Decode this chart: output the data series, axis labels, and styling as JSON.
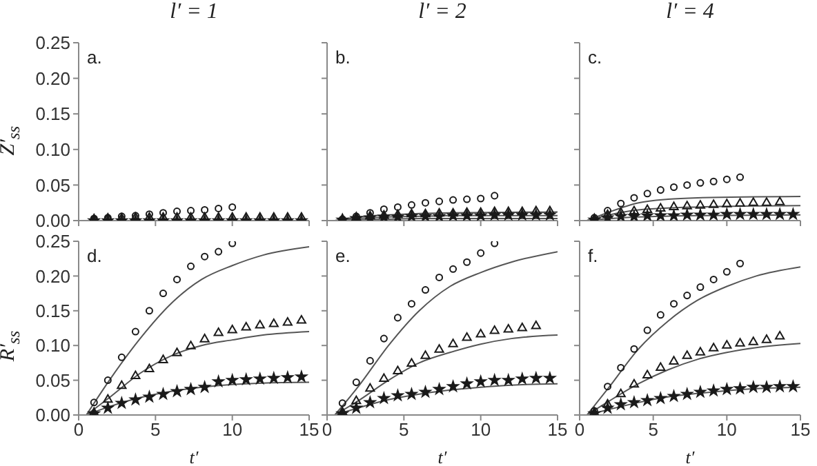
{
  "chart_data": [
    {
      "type": "scatter",
      "title": "l′ = 1",
      "ylabel": "Z′$_{ss}$",
      "annotations": [
        "a."
      ],
      "tick_labels": "y",
      "xlim": [
        0,
        15
      ],
      "xticks": [
        0,
        5,
        10,
        15
      ],
      "ylim": [
        0,
        0.25
      ],
      "yticks": [
        {
          "value": 0,
          "label": "0.00"
        },
        0.05,
        {
          "value": 0.1,
          "label": "0.10"
        },
        0.15,
        {
          "value": 0.2,
          "label": "0.20"
        },
        0.25
      ],
      "x": [
        1,
        1.9,
        2.8,
        3.7,
        4.6,
        5.5,
        6.4,
        7.3,
        8.2,
        9.1,
        10,
        10.9,
        11.8,
        12.7,
        13.6,
        14.5
      ],
      "series": [
        {
          "type": "scatter",
          "marker": "circle",
          "color": "#1a1a1a",
          "values": [
            0.003,
            0.004,
            0.006,
            0.007,
            0.009,
            0.011,
            0.013,
            0.014,
            0.015,
            0.017,
            0.019,
            null,
            null,
            null,
            null,
            null
          ]
        },
        {
          "type": "scatter",
          "marker": "triangle",
          "color": "#1a1a1a",
          "values": [
            0.002,
            0.003,
            0.003,
            0.004,
            0.004,
            0.004,
            0.004,
            0.004,
            0.004,
            0.004,
            0.004,
            0.004,
            0.004,
            0.004,
            0.004,
            0.004
          ]
        },
        {
          "type": "scatter",
          "marker": "star",
          "color": "#1a1a1a",
          "values": [
            0,
            0,
            0,
            0,
            0,
            0,
            0,
            0,
            0,
            0,
            0,
            0,
            0,
            0,
            0,
            0
          ]
        }
      ]
    },
    {
      "type": "scatter",
      "title": "l′ = 2",
      "annotations": [
        "b."
      ],
      "tick_labels": false,
      "xlim": [
        0,
        15
      ],
      "xticks": [
        0,
        5,
        10,
        15
      ],
      "ylim": [
        0,
        0.25
      ],
      "yticks": [
        0,
        0.05,
        0.1,
        0.15,
        0.2,
        0.25
      ],
      "x": [
        1,
        1.9,
        2.8,
        3.7,
        4.6,
        5.5,
        6.4,
        7.3,
        8.2,
        9.1,
        10,
        10.9,
        11.8,
        12.7,
        13.6,
        14.5
      ],
      "series": [
        {
          "type": "scatter",
          "marker": "circle",
          "color": "#1a1a1a",
          "values": [
            0.002,
            0.006,
            0.011,
            0.016,
            0.019,
            0.022,
            0.025,
            0.027,
            0.029,
            0.03,
            0.031,
            0.035,
            null,
            null,
            null,
            null
          ]
        },
        {
          "type": "scatter",
          "marker": "triangle",
          "color": "#1a1a1a",
          "values": [
            0.002,
            0.004,
            0.006,
            0.007,
            0.008,
            0.009,
            0.009,
            0.01,
            0.01,
            0.011,
            0.011,
            0.012,
            0.012,
            0.012,
            0.013,
            0.013
          ]
        },
        {
          "type": "scatter",
          "marker": "star",
          "color": "#1a1a1a",
          "values": [
            0.001,
            0.003,
            0.004,
            0.005,
            0.005,
            0.006,
            0.006,
            0.006,
            0.007,
            0.007,
            0.007,
            0.008,
            0.008,
            0.008,
            0.008,
            0.008
          ]
        },
        {
          "type": "line",
          "marker": "none",
          "color": "#555555",
          "x": [
            0.5,
            2,
            4,
            6,
            8,
            15
          ],
          "values": [
            0,
            0.005,
            0.008,
            0.01,
            0.011,
            0.012
          ]
        },
        {
          "type": "line",
          "marker": "none",
          "color": "#555555",
          "x": [
            0.5,
            2,
            4,
            6,
            8,
            15
          ],
          "values": [
            0,
            0.003,
            0.005,
            0.006,
            0.007,
            0.007
          ]
        },
        {
          "type": "line",
          "marker": "none",
          "color": "#555555",
          "x": [
            0.5,
            2,
            4,
            6,
            8,
            15
          ],
          "values": [
            0,
            0.001,
            0.002,
            0.003,
            0.003,
            0.003
          ]
        }
      ]
    },
    {
      "type": "scatter",
      "title": "l′ = 4",
      "annotations": [
        "c."
      ],
      "tick_labels": false,
      "xlim": [
        0,
        15
      ],
      "xticks": [
        0,
        5,
        10,
        15
      ],
      "ylim": [
        0,
        0.25
      ],
      "yticks": [
        0,
        0.05,
        0.1,
        0.15,
        0.2,
        0.25
      ],
      "x": [
        1,
        1.9,
        2.8,
        3.7,
        4.6,
        5.5,
        6.4,
        7.3,
        8.2,
        9.1,
        10,
        10.9,
        11.8,
        12.7,
        13.6,
        14.5
      ],
      "series": [
        {
          "type": "scatter",
          "marker": "circle",
          "color": "#1a1a1a",
          "values": [
            0.004,
            0.014,
            0.024,
            0.032,
            0.038,
            0.043,
            0.047,
            0.05,
            0.053,
            0.055,
            0.058,
            0.061,
            null,
            null,
            null,
            null
          ]
        },
        {
          "type": "scatter",
          "marker": "triangle",
          "color": "#1a1a1a",
          "values": [
            0.002,
            0.008,
            0.011,
            0.013,
            0.015,
            0.017,
            0.019,
            0.02,
            0.021,
            0.022,
            0.023,
            0.024,
            0.025,
            0.025,
            0.026,
            null
          ]
        },
        {
          "type": "scatter",
          "marker": "star",
          "color": "#1a1a1a",
          "values": [
            0.001,
            0.004,
            0.006,
            0.006,
            0.007,
            0.007,
            0.007,
            0.008,
            0.008,
            0.008,
            0.009,
            0.009,
            0.009,
            0.009,
            0.009,
            0.009
          ]
        },
        {
          "type": "line",
          "marker": "none",
          "color": "#555555",
          "x": [
            0.5,
            2,
            4,
            6,
            8,
            15
          ],
          "values": [
            0,
            0.012,
            0.025,
            0.03,
            0.032,
            0.034
          ]
        },
        {
          "type": "line",
          "marker": "none",
          "color": "#555555",
          "x": [
            0.5,
            2,
            4,
            8,
            15
          ],
          "values": [
            0,
            0.008,
            0.015,
            0.019,
            0.021
          ]
        },
        {
          "type": "line",
          "marker": "none",
          "color": "#555555",
          "x": [
            0.5,
            3,
            8,
            15
          ],
          "values": [
            0,
            0.004,
            0.007,
            0.008
          ]
        }
      ]
    },
    {
      "type": "scatter",
      "xlabel": "t′",
      "ylabel": "R′$_{ss}$",
      "annotations": [
        "d."
      ],
      "xlim": [
        0,
        15
      ],
      "xticks": [
        0,
        5,
        10,
        15
      ],
      "ylim": [
        0,
        0.25
      ],
      "yticks": [
        {
          "value": 0,
          "label": "0.00"
        },
        0.05,
        {
          "value": 0.1,
          "label": "0.10"
        },
        0.15,
        {
          "value": 0.2,
          "label": "0.20"
        },
        0.25
      ],
      "x": [
        1,
        1.9,
        2.8,
        3.7,
        4.6,
        5.5,
        6.4,
        7.3,
        8.2,
        9.1,
        10,
        10.9,
        11.8,
        12.7,
        13.6,
        14.5
      ],
      "series": [
        {
          "type": "scatter",
          "marker": "circle",
          "color": "#1a1a1a",
          "values": [
            0.018,
            0.05,
            0.083,
            0.12,
            0.15,
            0.175,
            0.195,
            0.214,
            0.228,
            0.235,
            0.247,
            null,
            null,
            null,
            null,
            null
          ]
        },
        {
          "type": "scatter",
          "marker": "triangle",
          "color": "#1a1a1a",
          "values": [
            0.003,
            0.022,
            0.042,
            0.056,
            0.066,
            0.079,
            0.089,
            0.099,
            0.109,
            0.118,
            0.122,
            0.126,
            0.129,
            0.131,
            0.133,
            0.136
          ]
        },
        {
          "type": "scatter",
          "marker": "star",
          "color": "#1a1a1a",
          "values": [
            0.002,
            0.01,
            0.017,
            0.022,
            0.026,
            0.03,
            0.034,
            0.037,
            0.04,
            0.048,
            0.05,
            0.051,
            0.052,
            0.053,
            0.054,
            0.055
          ]
        },
        {
          "type": "line",
          "marker": "none",
          "color": "#555555",
          "x": [
            0.5,
            2,
            4,
            6,
            8,
            10,
            12,
            15
          ],
          "values": [
            0,
            0.05,
            0.11,
            0.16,
            0.195,
            0.215,
            0.23,
            0.242
          ]
        },
        {
          "type": "line",
          "marker": "none",
          "color": "#555555",
          "x": [
            0.5,
            2,
            4,
            6,
            8,
            10,
            12,
            15
          ],
          "values": [
            0,
            0.025,
            0.06,
            0.085,
            0.1,
            0.108,
            0.115,
            0.12
          ]
        },
        {
          "type": "line",
          "marker": "none",
          "color": "#555555",
          "x": [
            0.5,
            2,
            4,
            6,
            8,
            10,
            12,
            15
          ],
          "values": [
            0,
            0.012,
            0.025,
            0.034,
            0.04,
            0.044,
            0.046,
            0.047
          ]
        }
      ]
    },
    {
      "type": "scatter",
      "xlabel": "t′",
      "annotations": [
        "e."
      ],
      "tick_labels": "x",
      "xlim": [
        0,
        15
      ],
      "xticks": [
        0,
        5,
        10,
        15
      ],
      "ylim": [
        0,
        0.25
      ],
      "yticks": [
        0,
        0.05,
        0.1,
        0.15,
        0.2,
        0.25
      ],
      "x": [
        1,
        1.9,
        2.8,
        3.7,
        4.6,
        5.5,
        6.4,
        7.3,
        8.2,
        9.1,
        10,
        10.9,
        11.8,
        12.7,
        13.6,
        14.5
      ],
      "series": [
        {
          "type": "scatter",
          "marker": "circle",
          "color": "#1a1a1a",
          "values": [
            0.017,
            0.047,
            0.078,
            0.11,
            0.14,
            0.16,
            0.18,
            0.198,
            0.21,
            0.22,
            0.233,
            0.247,
            null,
            null,
            null,
            null
          ]
        },
        {
          "type": "scatter",
          "marker": "triangle",
          "color": "#1a1a1a",
          "values": [
            0.004,
            0.02,
            0.038,
            0.052,
            0.063,
            0.074,
            0.085,
            0.094,
            0.102,
            0.111,
            0.116,
            0.121,
            0.123,
            0.125,
            0.128,
            null
          ]
        },
        {
          "type": "scatter",
          "marker": "star",
          "color": "#1a1a1a",
          "values": [
            0.002,
            0.01,
            0.018,
            0.024,
            0.028,
            0.03,
            0.033,
            0.037,
            0.041,
            0.045,
            0.048,
            0.05,
            0.05,
            0.052,
            0.053,
            0.053
          ]
        },
        {
          "type": "line",
          "marker": "none",
          "color": "#555555",
          "x": [
            0.5,
            2,
            4,
            6,
            8,
            10,
            12,
            15
          ],
          "values": [
            0,
            0.04,
            0.1,
            0.15,
            0.185,
            0.205,
            0.22,
            0.235
          ]
        },
        {
          "type": "line",
          "marker": "none",
          "color": "#555555",
          "x": [
            0.5,
            2,
            4,
            6,
            8,
            10,
            12,
            15
          ],
          "values": [
            0,
            0.02,
            0.05,
            0.075,
            0.09,
            0.102,
            0.11,
            0.115
          ]
        },
        {
          "type": "line",
          "marker": "none",
          "color": "#555555",
          "x": [
            0.5,
            2,
            4,
            6,
            8,
            10,
            12,
            15
          ],
          "values": [
            0,
            0.01,
            0.022,
            0.03,
            0.036,
            0.04,
            0.043,
            0.045
          ]
        }
      ]
    },
    {
      "type": "scatter",
      "xlabel": "t′",
      "annotations": [
        "f."
      ],
      "tick_labels": "x",
      "xlim": [
        0,
        15
      ],
      "xticks": [
        0,
        5,
        10,
        15
      ],
      "ylim": [
        0,
        0.25
      ],
      "yticks": [
        0,
        0.05,
        0.1,
        0.15,
        0.2,
        0.25
      ],
      "x": [
        1,
        1.9,
        2.8,
        3.7,
        4.6,
        5.5,
        6.4,
        7.3,
        8.2,
        9.1,
        10,
        10.9,
        11.8,
        12.7,
        13.6,
        14.5
      ],
      "series": [
        {
          "type": "scatter",
          "marker": "circle",
          "color": "#1a1a1a",
          "values": [
            0.006,
            0.041,
            0.068,
            0.095,
            0.122,
            0.144,
            0.16,
            0.172,
            0.184,
            0.195,
            0.206,
            0.218,
            null,
            null,
            null,
            null
          ]
        },
        {
          "type": "scatter",
          "marker": "triangle",
          "color": "#1a1a1a",
          "values": [
            0.003,
            0.015,
            0.03,
            0.044,
            0.057,
            0.068,
            0.077,
            0.085,
            0.09,
            0.096,
            0.1,
            0.103,
            0.105,
            0.108,
            0.113,
            null
          ]
        },
        {
          "type": "scatter",
          "marker": "star",
          "color": "#1a1a1a",
          "values": [
            0.002,
            0.01,
            0.015,
            0.018,
            0.021,
            0.024,
            0.027,
            0.03,
            0.033,
            0.035,
            0.037,
            0.038,
            0.04,
            0.04,
            0.041,
            0.041
          ]
        },
        {
          "type": "line",
          "marker": "none",
          "color": "#555555",
          "x": [
            0.5,
            2,
            4,
            6,
            8,
            10,
            12,
            15
          ],
          "values": [
            0,
            0.04,
            0.095,
            0.135,
            0.165,
            0.185,
            0.2,
            0.213
          ]
        },
        {
          "type": "line",
          "marker": "none",
          "color": "#555555",
          "x": [
            0.5,
            2,
            4,
            6,
            8,
            10,
            12,
            15
          ],
          "values": [
            0,
            0.02,
            0.045,
            0.065,
            0.08,
            0.09,
            0.097,
            0.103
          ]
        },
        {
          "type": "line",
          "marker": "none",
          "color": "#555555",
          "x": [
            0.5,
            2,
            4,
            6,
            8,
            10,
            12,
            15
          ],
          "values": [
            0,
            0.008,
            0.018,
            0.026,
            0.031,
            0.035,
            0.038,
            0.04
          ]
        }
      ]
    }
  ]
}
